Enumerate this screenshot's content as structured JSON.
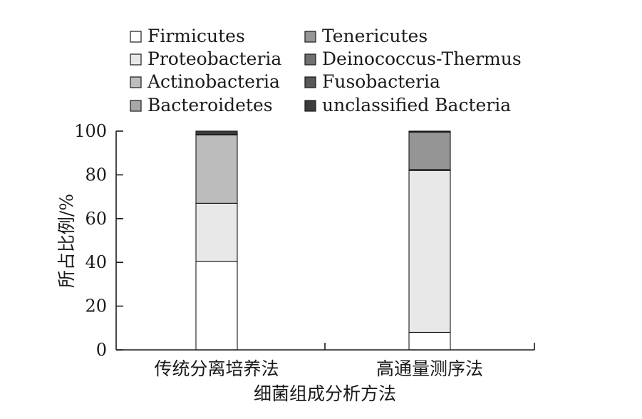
{
  "chart_data": {
    "type": "bar",
    "stacked": true,
    "title": "",
    "xlabel": "细菌组成分析方法",
    "ylabel": "所占比例/%",
    "ylim": [
      0,
      100
    ],
    "yticks": [
      "0",
      "20",
      "40",
      "60",
      "80",
      "100"
    ],
    "categories": [
      "传统分离培养法",
      "高通量测序法"
    ],
    "legend_position": "top",
    "series": [
      {
        "name": "Firmicutes",
        "color": "#ffffff",
        "values": [
          40.5,
          8
        ]
      },
      {
        "name": "Proteobacteria",
        "color": "#e8e8e8",
        "values": [
          26.5,
          74
        ]
      },
      {
        "name": "Actinobacteria",
        "color": "#bcbcbc",
        "values": [
          31.3,
          0.5
        ]
      },
      {
        "name": "Bacteroidetes",
        "color": "#a8a8a8",
        "values": [
          0.2,
          0
        ]
      },
      {
        "name": "Tenericutes",
        "color": "#959595",
        "values": [
          0,
          17
        ]
      },
      {
        "name": "Deinococcus-Thermus",
        "color": "#707070",
        "values": [
          0,
          0.3
        ]
      },
      {
        "name": "Fusobacteria",
        "color": "#585858",
        "values": [
          0,
          0.2
        ]
      },
      {
        "name": "unclassified Bacteria",
        "color": "#3c3c3c",
        "values": [
          1.5,
          0
        ]
      }
    ]
  }
}
